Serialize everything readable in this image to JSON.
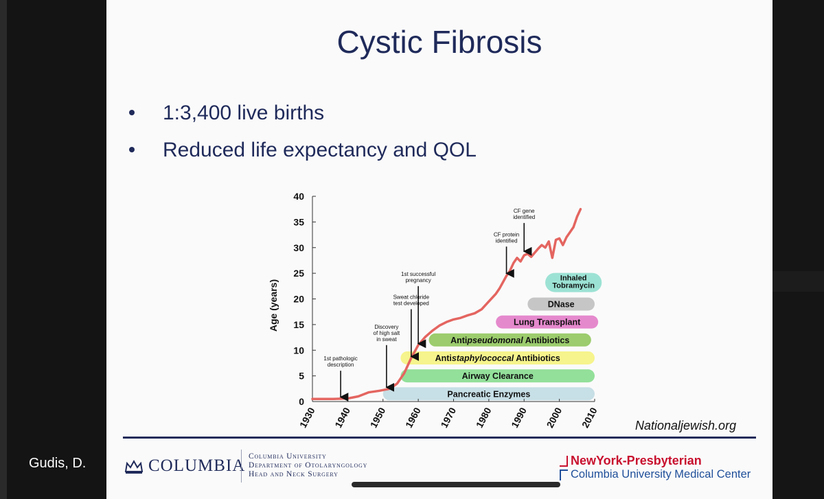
{
  "presenter": "Gudis, D.",
  "slide": {
    "title": "Cystic Fibrosis",
    "bullets": [
      "1:3,400 live births",
      "Reduced life expectancy and QOL"
    ],
    "credit": "Nationaljewish.org",
    "footer": {
      "columbia": "COLUMBIA",
      "dept_lines": [
        "Columbia University",
        "Department of Otolaryngology",
        "Head and Neck Surgery"
      ],
      "nyp_line1": "NewYork-Presbyterian",
      "nyp_line2": "Columbia University Medical Center"
    }
  },
  "chart_data": {
    "type": "line",
    "ylabel": "Age (years)",
    "ylim": [
      0,
      40
    ],
    "xlim": [
      1930,
      2010
    ],
    "x_ticks": [
      "1930",
      "1940",
      "1950",
      "1960",
      "1970",
      "1980",
      "1990",
      "2000",
      "2010"
    ],
    "y_ticks": [
      "0",
      "5",
      "10",
      "15",
      "20",
      "25",
      "30",
      "35",
      "40"
    ],
    "line_color": "#e46560",
    "series": [
      {
        "x": [
          1930,
          1936,
          1940,
          1943,
          1946,
          1949,
          1952,
          1954,
          1956,
          1958,
          1960,
          1962,
          1964,
          1966,
          1968,
          1970,
          1972,
          1974,
          1976,
          1978,
          1980,
          1982,
          1983,
          1985,
          1986,
          1987,
          1988,
          1989,
          1990,
          1991,
          1992,
          1993,
          1994,
          1995,
          1996,
          1997,
          1998,
          1999,
          2000,
          2001,
          2002,
          2003,
          2004,
          2005,
          2006
        ],
        "y": [
          0.5,
          0.5,
          0.6,
          1.0,
          1.8,
          2.1,
          2.5,
          3.5,
          5.5,
          8.5,
          11.0,
          12.6,
          13.8,
          14.8,
          15.5,
          16.0,
          16.3,
          16.8,
          17.2,
          18.0,
          19.5,
          21.0,
          22.0,
          24.5,
          25.5,
          27.0,
          28.0,
          27.3,
          28.5,
          28.8,
          28.2,
          29.0,
          29.8,
          30.5,
          30.0,
          31.2,
          28.0,
          31.5,
          31.8,
          30.5,
          32.0,
          33.0,
          34.0,
          36.0,
          37.5
        ]
      }
    ],
    "annotations": [
      {
        "x": 1938,
        "y_from": 6,
        "y_to": 0.6,
        "lines": [
          "1st pathologic",
          "description"
        ]
      },
      {
        "x": 1951,
        "y_from": 11,
        "y_to": 2.5,
        "lines": [
          "Discovery",
          "of high salt",
          "in sweat"
        ]
      },
      {
        "x": 1958,
        "y_from": 18,
        "y_to": 8.5,
        "lines": [
          "Sweat chloride",
          "test developed"
        ]
      },
      {
        "x": 1960,
        "y_from": 22.5,
        "y_to": 11.0,
        "lines": [
          "1st successful",
          "pregnancy"
        ]
      },
      {
        "x": 1985,
        "y_from": 30.2,
        "y_to": 24.7,
        "lines": [
          "CF protein",
          "identified"
        ]
      },
      {
        "x": 1990,
        "y_from": 34.8,
        "y_to": 29.0,
        "lines": [
          "CF gene",
          "identified"
        ]
      }
    ],
    "treatments": [
      {
        "label": "Pancreatic Enzymes",
        "start": 1950,
        "end": 2010,
        "y": 1.5,
        "color": "#c7dfe6"
      },
      {
        "label": "Airway Clearance",
        "start": 1955,
        "end": 2010,
        "y": 5,
        "color": "#93e09a"
      },
      {
        "label": "Antistaphylococcal Antibiotics",
        "italic": "staphylococcal",
        "start": 1955,
        "end": 2010,
        "y": 8.5,
        "color": "#f6f48c"
      },
      {
        "label": "Antipseudomonal Antibiotics",
        "italic": "pseudomonal",
        "start": 1963,
        "end": 2009,
        "y": 12,
        "color": "#9ccc6d"
      },
      {
        "label": "Lung Transplant",
        "start": 1982,
        "end": 2011,
        "y": 15.5,
        "color": "#e589cd"
      },
      {
        "label": "DNase",
        "start": 1991,
        "end": 2010,
        "y": 19,
        "color": "#c6c6c6"
      },
      {
        "label": "Inhaled Tobramycin",
        "lines": [
          "Inhaled",
          "Tobramycin"
        ],
        "start": 1996,
        "end": 2012,
        "y": 23.2,
        "color": "#9ce2d4"
      }
    ]
  }
}
